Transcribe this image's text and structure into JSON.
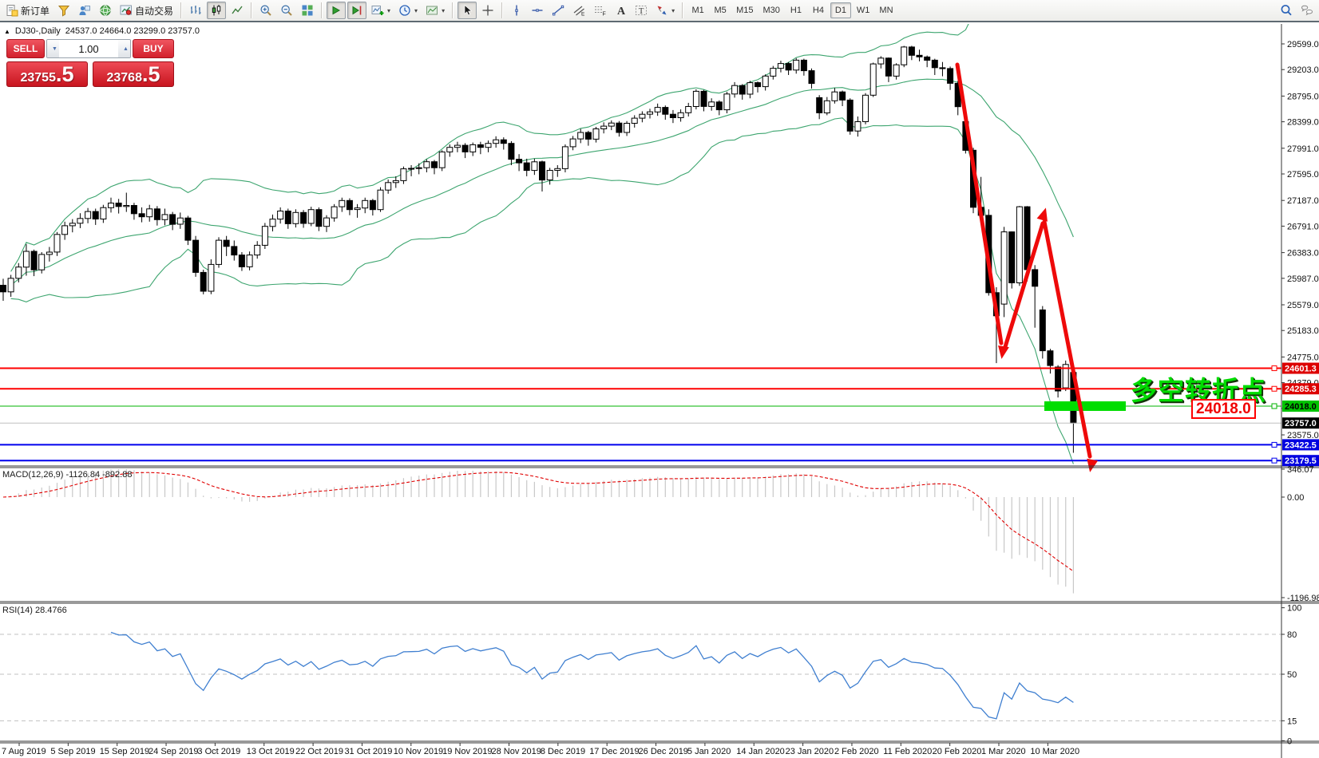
{
  "toolbar": {
    "new_order_label": "新订单",
    "autotrading_label": "自动交易",
    "items": [
      {
        "t": "btn",
        "icon": "new-order",
        "label": "新订单",
        "name": "new-order-button"
      },
      {
        "t": "btn",
        "icon": "funnel",
        "name": "market-watch-button"
      },
      {
        "t": "btn",
        "icon": "person",
        "name": "navigator-button"
      },
      {
        "t": "btn",
        "icon": "globe",
        "name": "terminal-button"
      },
      {
        "t": "btn",
        "icon": "autotrading",
        "label": "自动交易",
        "name": "autotrading-button"
      },
      {
        "t": "sep"
      },
      {
        "t": "btn",
        "icon": "bar-chart",
        "name": "bar-chart-button"
      },
      {
        "t": "btn",
        "icon": "candles",
        "active": true,
        "name": "candlestick-chart-button"
      },
      {
        "t": "btn",
        "icon": "line-chart",
        "name": "line-chart-button"
      },
      {
        "t": "sep"
      },
      {
        "t": "btn",
        "icon": "zoom-in",
        "name": "zoom-in-button"
      },
      {
        "t": "btn",
        "icon": "zoom-out",
        "name": "zoom-out-button"
      },
      {
        "t": "btn",
        "icon": "tile",
        "name": "tile-windows-button"
      },
      {
        "t": "sep"
      },
      {
        "t": "btn",
        "icon": "auto-scroll",
        "active": true,
        "name": "auto-scroll-button"
      },
      {
        "t": "btn",
        "icon": "chart-shift",
        "active": true,
        "name": "chart-shift-button"
      },
      {
        "t": "btn",
        "icon": "indicators",
        "drop": true,
        "name": "indicators-button"
      },
      {
        "t": "btn",
        "icon": "periods",
        "drop": true,
        "name": "periods-button"
      },
      {
        "t": "btn",
        "icon": "templates",
        "drop": true,
        "name": "templates-button"
      },
      {
        "t": "sep"
      },
      {
        "t": "btn",
        "icon": "cursor",
        "active": true,
        "name": "cursor-button"
      },
      {
        "t": "btn",
        "icon": "crosshair",
        "name": "crosshair-button"
      },
      {
        "t": "sep"
      },
      {
        "t": "btn",
        "icon": "vline",
        "name": "vertical-line-button"
      },
      {
        "t": "btn",
        "icon": "hline",
        "name": "horizontal-line-button"
      },
      {
        "t": "btn",
        "icon": "trendline",
        "name": "trendline-button"
      },
      {
        "t": "btn",
        "icon": "channel",
        "name": "equidistant-channel-button"
      },
      {
        "t": "btn",
        "icon": "fibonacci",
        "name": "fibonacci-button"
      },
      {
        "t": "btn",
        "icon": "text",
        "name": "text-button"
      },
      {
        "t": "btn",
        "icon": "label",
        "name": "text-label-button"
      },
      {
        "t": "btn",
        "icon": "arrows",
        "drop": true,
        "name": "arrows-button"
      },
      {
        "t": "sep"
      },
      {
        "t": "tf",
        "label": "M1",
        "name": "timeframe-m1"
      },
      {
        "t": "tf",
        "label": "M5",
        "name": "timeframe-m5"
      },
      {
        "t": "tf",
        "label": "M15",
        "name": "timeframe-m15"
      },
      {
        "t": "tf",
        "label": "M30",
        "name": "timeframe-m30"
      },
      {
        "t": "tf",
        "label": "H1",
        "name": "timeframe-h1"
      },
      {
        "t": "tf",
        "label": "H4",
        "name": "timeframe-h4"
      },
      {
        "t": "tf",
        "label": "D1",
        "active": true,
        "name": "timeframe-d1"
      },
      {
        "t": "tf",
        "label": "W1",
        "name": "timeframe-w1"
      },
      {
        "t": "tf",
        "label": "MN",
        "name": "timeframe-mn"
      },
      {
        "t": "btn",
        "icon": "search",
        "right": true,
        "name": "search-button"
      },
      {
        "t": "btn",
        "icon": "chat",
        "name": "chat-button"
      }
    ]
  },
  "chart_header": {
    "symbol_period": "DJ30-,Daily",
    "ohlc": "24537.0 24664.0 23299.0 23757.0"
  },
  "one_click": {
    "sell_label": "SELL",
    "buy_label": "BUY",
    "volume": "1.00",
    "sell_price_main": "23755",
    "sell_price_frac": ".5",
    "buy_price_main": "23768",
    "buy_price_frac": ".5"
  },
  "indicators": {
    "macd_label": "MACD(12,26,9) -1126.84 -892.88",
    "rsi_label": "RSI(14) 28.4766"
  },
  "annotations": {
    "turning_point": "多空转折点",
    "boxed_price": "24018.0"
  },
  "colors": {
    "panel_red": "#d3202c",
    "badge_red": "#dd0000",
    "badge_green": "#00c400",
    "badge_blue": "#0000e0",
    "badge_black": "#000000",
    "line_red": "#ff0000",
    "line_green": "#00b300",
    "line_blue": "#0000ee",
    "line_silver": "#c0c0c0",
    "highlight_green": "#00dd00",
    "bollinger_green": "#3da56f",
    "macd_hist": "#c8c8c8",
    "macd_signal": "#e00000",
    "rsi_blue": "#3f7fd0",
    "arrow_red": "#ee0a0a"
  },
  "chart_data": {
    "type": "candlestick",
    "symbol": "DJ30-",
    "period": "Daily",
    "last_ohlc": {
      "open": 24537.0,
      "high": 24664.0,
      "low": 23299.0,
      "close": 23757.0
    },
    "bid": 23755.5,
    "ask": 23768.5,
    "price_axis_ticks": [
      "29599.0",
      "29203.0",
      "28795.0",
      "28399.0",
      "27991.0",
      "27595.0",
      "27187.0",
      "26791.0",
      "26383.0",
      "25987.0",
      "25579.0",
      "25183.0",
      "24775.0",
      "24379.0",
      "23983.0",
      "23575.0"
    ],
    "x_labels": [
      "7 Aug 2019",
      "5 Sep 2019",
      "15 Sep 2019",
      "24 Sep 2019",
      "3 Oct 2019",
      "13 Oct 2019",
      "22 Oct 2019",
      "31 Oct 2019",
      "10 Nov 2019",
      "19 Nov 2019",
      "28 Nov 2019",
      "8 Dec 2019",
      "17 Dec 2019",
      "26 Dec 2019",
      "5 Jan 2020",
      "14 Jan 2020",
      "23 Jan 2020",
      "2 Feb 2020",
      "11 Feb 2020",
      "20 Feb 2020",
      "1 Mar 2020",
      "10 Mar 2020"
    ],
    "hlines": [
      {
        "price": 24601.3,
        "label": "24601.3",
        "color": "#ff0000",
        "width": 2,
        "badge_bg": "#dd0000",
        "badge_fg": "#ffffff",
        "handle": true
      },
      {
        "price": 24285.3,
        "label": "24285.3",
        "color": "#ff0000",
        "width": 2,
        "badge_bg": "#dd0000",
        "badge_fg": "#ffffff",
        "handle": true
      },
      {
        "price": 24018.0,
        "label": "24018.0",
        "color": "#00b300",
        "width": 1,
        "badge_bg": "#00c400",
        "badge_fg": "#000000",
        "handle": true
      },
      {
        "price": 23757.0,
        "label": "23757.0",
        "color": "#c0c0c0",
        "width": 1,
        "badge_bg": "#000000",
        "badge_fg": "#ffffff",
        "handle": false
      },
      {
        "price": 23422.5,
        "label": "23422.5",
        "color": "#0000ee",
        "width": 2,
        "badge_bg": "#0000e0",
        "badge_fg": "#ffffff",
        "handle": true
      },
      {
        "price": 23179.5,
        "label": "23179.5",
        "color": "#0000ee",
        "width": 2,
        "badge_bg": "#0000e0",
        "badge_fg": "#ffffff",
        "handle": true
      }
    ],
    "highlight_bar": {
      "price": 24018.0,
      "color": "#00dd00"
    },
    "bollinger": {
      "period": 20,
      "deviation": 2
    },
    "macd": {
      "fast": 12,
      "slow": 26,
      "signal": 9,
      "current_main": -1126.84,
      "current_signal": -892.88,
      "axis_ticks": [
        {
          "v": 346.07,
          "label": "346.07"
        },
        {
          "v": 0,
          "label": "0.00"
        },
        {
          "v": -1196.98,
          "label": "-1196.98"
        }
      ]
    },
    "rsi": {
      "period": 14,
      "current": 28.4766,
      "levels": [
        80,
        50,
        15
      ],
      "axis_ticks": [
        {
          "v": 100,
          "label": "100"
        },
        {
          "v": 80,
          "label": "80"
        },
        {
          "v": 50,
          "label": "50"
        },
        {
          "v": 15,
          "label": "15"
        },
        {
          "v": 0,
          "label": "0"
        }
      ]
    },
    "candles": [
      [
        25880,
        25980,
        25640,
        25778
      ],
      [
        25778,
        26040,
        25702,
        25987
      ],
      [
        25987,
        26222,
        25925,
        26160
      ],
      [
        26160,
        26514,
        26028,
        26403
      ],
      [
        26403,
        26430,
        26021,
        26118
      ],
      [
        26118,
        26390,
        26062,
        26355
      ],
      [
        26355,
        26470,
        26245,
        26391
      ],
      [
        26391,
        26700,
        26331,
        26663
      ],
      [
        26663,
        26860,
        26580,
        26797
      ],
      [
        26797,
        26900,
        26695,
        26835
      ],
      [
        26835,
        26990,
        26760,
        26909
      ],
      [
        26909,
        27070,
        26835,
        27016
      ],
      [
        27016,
        27060,
        26810,
        26900
      ],
      [
        26900,
        27120,
        26840,
        27076
      ],
      [
        27076,
        27230,
        27000,
        27147
      ],
      [
        27147,
        27210,
        26985,
        27094
      ],
      [
        27094,
        27306,
        27010,
        27110
      ],
      [
        27110,
        27150,
        26890,
        26983
      ],
      [
        26983,
        27080,
        26850,
        26935
      ],
      [
        26935,
        27120,
        26860,
        27057
      ],
      [
        27057,
        27100,
        26800,
        26891
      ],
      [
        26891,
        27060,
        26805,
        26970
      ],
      [
        26970,
        27010,
        26730,
        26820
      ],
      [
        26820,
        27000,
        26750,
        26916
      ],
      [
        26916,
        26950,
        26500,
        26573
      ],
      [
        26573,
        26640,
        26010,
        26078
      ],
      [
        26078,
        26120,
        25740,
        25788
      ],
      [
        25788,
        26280,
        25743,
        26201
      ],
      [
        26201,
        26620,
        26150,
        26573
      ],
      [
        26573,
        26640,
        26330,
        26478
      ],
      [
        26478,
        26570,
        26260,
        26346
      ],
      [
        26346,
        26390,
        26100,
        26164
      ],
      [
        26164,
        26400,
        26110,
        26346
      ],
      [
        26346,
        26560,
        26290,
        26496
      ],
      [
        26496,
        26840,
        26440,
        26787
      ],
      [
        26787,
        26970,
        26710,
        26900
      ],
      [
        26900,
        27080,
        26830,
        27024
      ],
      [
        27024,
        27060,
        26750,
        26829
      ],
      [
        26829,
        27050,
        26770,
        27001
      ],
      [
        27001,
        27040,
        26765,
        26833
      ],
      [
        26833,
        27090,
        26790,
        27046
      ],
      [
        27046,
        27080,
        26715,
        26788
      ],
      [
        26788,
        26960,
        26700,
        26918
      ],
      [
        26918,
        27130,
        26860,
        27090
      ],
      [
        27090,
        27230,
        27010,
        27186
      ],
      [
        27186,
        27220,
        26960,
        27046
      ],
      [
        27046,
        27130,
        26920,
        27071
      ],
      [
        27071,
        27230,
        26990,
        27186
      ],
      [
        27186,
        27210,
        26955,
        27046
      ],
      [
        27046,
        27390,
        27010,
        27347
      ],
      [
        27347,
        27510,
        27290,
        27462
      ],
      [
        27462,
        27560,
        27380,
        27492
      ],
      [
        27492,
        27710,
        27440,
        27674
      ],
      [
        27674,
        27730,
        27560,
        27681
      ],
      [
        27681,
        27760,
        27590,
        27691
      ],
      [
        27691,
        27820,
        27620,
        27783
      ],
      [
        27783,
        27810,
        27590,
        27691
      ],
      [
        27691,
        27960,
        27640,
        27934
      ],
      [
        27934,
        28050,
        27860,
        28004
      ],
      [
        28004,
        28090,
        27930,
        28036
      ],
      [
        28036,
        28070,
        27840,
        27934
      ],
      [
        27934,
        28080,
        27870,
        28045
      ],
      [
        28045,
        28090,
        27900,
        28004
      ],
      [
        28004,
        28110,
        27930,
        28066
      ],
      [
        28066,
        28175,
        28000,
        28121
      ],
      [
        28121,
        28160,
        27970,
        28066
      ],
      [
        28066,
        28100,
        27730,
        27821
      ],
      [
        27821,
        27900,
        27640,
        27766
      ],
      [
        27766,
        27830,
        27560,
        27649
      ],
      [
        27649,
        27830,
        27580,
        27782
      ],
      [
        27782,
        27800,
        27325,
        27502
      ],
      [
        27502,
        27690,
        27430,
        27650
      ],
      [
        27650,
        27730,
        27550,
        27677
      ],
      [
        27677,
        28050,
        27620,
        28015
      ],
      [
        28015,
        28180,
        27960,
        28135
      ],
      [
        28135,
        28290,
        28070,
        28235
      ],
      [
        28235,
        28260,
        28030,
        28132
      ],
      [
        28132,
        28320,
        28080,
        28290
      ],
      [
        28290,
        28390,
        28220,
        28332
      ],
      [
        28332,
        28420,
        28270,
        28380
      ],
      [
        28380,
        28410,
        28170,
        28235
      ],
      [
        28235,
        28410,
        28180,
        28376
      ],
      [
        28376,
        28500,
        28310,
        28455
      ],
      [
        28455,
        28560,
        28390,
        28515
      ],
      [
        28515,
        28600,
        28450,
        28551
      ],
      [
        28551,
        28680,
        28490,
        28621
      ],
      [
        28621,
        28650,
        28430,
        28515
      ],
      [
        28515,
        28580,
        28380,
        28462
      ],
      [
        28462,
        28590,
        28400,
        28538
      ],
      [
        28538,
        28690,
        28480,
        28634
      ],
      [
        28634,
        28900,
        28590,
        28869
      ],
      [
        28869,
        28890,
        28560,
        28635
      ],
      [
        28635,
        28760,
        28570,
        28704
      ],
      [
        28704,
        28730,
        28500,
        28583
      ],
      [
        28583,
        28860,
        28530,
        28827
      ],
      [
        28827,
        29010,
        28770,
        28957
      ],
      [
        28957,
        28980,
        28740,
        28824
      ],
      [
        28824,
        29030,
        28760,
        29001
      ],
      [
        29001,
        29020,
        28850,
        28939
      ],
      [
        28939,
        29130,
        28880,
        29103
      ],
      [
        29103,
        29260,
        29050,
        29223
      ],
      [
        29223,
        29340,
        29160,
        29297
      ],
      [
        29297,
        29320,
        29120,
        29196
      ],
      [
        29196,
        29380,
        29140,
        29348
      ],
      [
        29348,
        29370,
        29110,
        29186
      ],
      [
        29186,
        29220,
        28910,
        28989
      ],
      [
        28770,
        28810,
        28440,
        28536
      ],
      [
        28536,
        28780,
        28500,
        28723
      ],
      [
        28723,
        28920,
        28680,
        28859
      ],
      [
        28859,
        28880,
        28640,
        28734
      ],
      [
        28734,
        28760,
        28200,
        28256
      ],
      [
        28256,
        28480,
        28170,
        28400
      ],
      [
        28400,
        28840,
        28360,
        28808
      ],
      [
        28808,
        29310,
        28780,
        29290
      ],
      [
        29290,
        29410,
        29220,
        29380
      ],
      [
        29380,
        29390,
        29010,
        29103
      ],
      [
        29103,
        29300,
        29050,
        29277
      ],
      [
        29277,
        29568,
        29240,
        29551
      ],
      [
        29551,
        29570,
        29350,
        29423
      ],
      [
        29423,
        29510,
        29330,
        29398
      ],
      [
        29398,
        29420,
        29240,
        29348
      ],
      [
        29348,
        29370,
        29120,
        29232
      ],
      [
        29232,
        29320,
        29100,
        29219
      ],
      [
        29219,
        29250,
        28890,
        28992
      ],
      [
        28992,
        29030,
        28500,
        28632
      ],
      [
        28402,
        28420,
        27910,
        27960
      ],
      [
        27960,
        28000,
        26990,
        27081
      ],
      [
        27081,
        27550,
        26880,
        26957
      ],
      [
        26957,
        27050,
        25720,
        25766
      ],
      [
        25766,
        25850,
        24681,
        25409
      ],
      [
        25590,
        26780,
        25390,
        26703
      ],
      [
        26703,
        26710,
        25830,
        25917
      ],
      [
        25917,
        27102,
        25870,
        27090
      ],
      [
        27090,
        27100,
        25940,
        26121
      ],
      [
        26121,
        26190,
        25226,
        25864
      ],
      [
        25500,
        25560,
        24750,
        24870
      ],
      [
        24870,
        24900,
        24520,
        24644
      ],
      [
        24620,
        24650,
        24150,
        24251
      ],
      [
        24300,
        24720,
        24250,
        24660
      ],
      [
        24537,
        24664,
        23299,
        23757
      ]
    ]
  }
}
